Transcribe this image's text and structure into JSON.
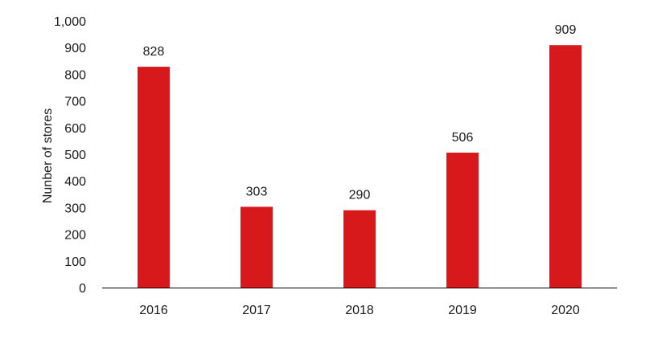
{
  "chart_data": {
    "type": "bar",
    "categories": [
      "2016",
      "2017",
      "2018",
      "2019",
      "2020"
    ],
    "values": [
      828,
      303,
      290,
      506,
      909
    ],
    "data_labels": [
      "828",
      "303",
      "290",
      "506",
      "909"
    ],
    "title": "",
    "xlabel": "",
    "ylabel": "Nunber of stores",
    "ylim": [
      0,
      1000
    ],
    "yticks": [
      0,
      100,
      200,
      300,
      400,
      500,
      600,
      700,
      800,
      900,
      1000
    ],
    "ytick_labels": [
      "0",
      "100",
      "200",
      "300",
      "400",
      "500",
      "600",
      "700",
      "800",
      "900",
      "1,000"
    ],
    "grid": false,
    "legend": "none",
    "bar_color": "#d7191c",
    "axis_color": "#000000"
  }
}
